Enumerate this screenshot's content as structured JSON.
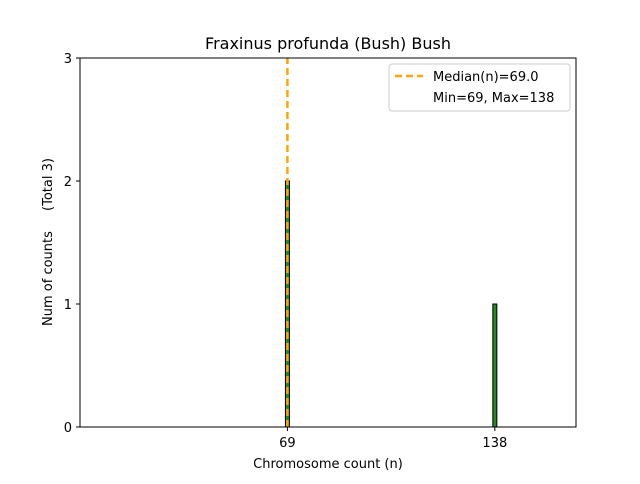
{
  "chart_data": {
    "type": "bar",
    "title": "Fraxinus profunda (Bush) Bush",
    "xlabel": "Chromosome count (n)",
    "ylabel": "Num of counts",
    "ylabel_note": "(Total 3)",
    "x_ticks": [
      69,
      138
    ],
    "y_ticks": [
      0,
      1,
      2,
      3
    ],
    "xlim": [
      0,
      165
    ],
    "ylim": [
      0,
      3
    ],
    "bars": [
      {
        "x": 69,
        "count": 2
      },
      {
        "x": 138,
        "count": 1
      }
    ],
    "median": 69.0,
    "legend": {
      "placement": "upper right",
      "median_label": "Median(n)=69.0",
      "range_label": "Min=69, Max=138"
    },
    "colors": {
      "bar_fill": "#228b22",
      "bar_edge": "#000000",
      "median_line": "#ffa500"
    },
    "grid": false
  }
}
